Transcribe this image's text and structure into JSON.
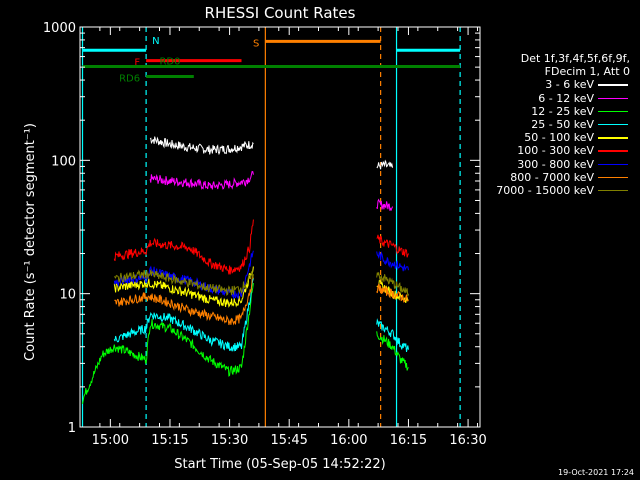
{
  "chart_data": {
    "type": "line",
    "title": "RHESSI Count Rates",
    "xlabel": "Start Time (05-Sep-05 14:52:22)",
    "ylabel": "Count Rate (s⁻¹ detector segment⁻¹)",
    "yscale": "log",
    "ylim": [
      1,
      1000
    ],
    "xlim": [
      "14:52:22",
      "16:33:00"
    ],
    "x_ticks": [
      "15:00",
      "15:15",
      "15:30",
      "15:45",
      "16:00",
      "16:15",
      "16:30"
    ],
    "y_ticks": [
      "1",
      "10",
      "100",
      "1000"
    ],
    "legend_title_lines": [
      "Det 1f,3f,4f,5f,6f,9f,",
      "FDecim 1, Att 0"
    ],
    "legend_position": "right",
    "series": [
      {
        "name": "3 - 6 keV",
        "color": "#ffffff",
        "segments": [
          {
            "x": [
              "15:10",
              "15:15",
              "15:20",
              "15:25",
              "15:30",
              "15:36"
            ],
            "y": [
              145,
              132,
              125,
              120,
              122,
              133
            ]
          },
          {
            "x": [
              "16:07",
              "16:09",
              "16:11"
            ],
            "y": [
              90,
              92,
              88
            ]
          }
        ]
      },
      {
        "name": "6 - 12 keV",
        "color": "#ff00ff",
        "segments": [
          {
            "x": [
              "15:10",
              "15:15",
              "15:20",
              "15:25",
              "15:30",
              "15:34",
              "15:36"
            ],
            "y": [
              73,
              70,
              68,
              64,
              66,
              70,
              78
            ]
          },
          {
            "x": [
              "16:07",
              "16:09",
              "16:11"
            ],
            "y": [
              47,
              46,
              45
            ]
          }
        ]
      },
      {
        "name": "12 - 25 keV",
        "color": "#00ff00",
        "segments": [
          {
            "x": [
              "14:53",
              "14:58",
              "15:01",
              "15:04",
              "15:06",
              "15:09",
              "15:10",
              "15:15",
              "15:20",
              "15:25",
              "15:30",
              "15:33",
              "15:36"
            ],
            "y": [
              1.6,
              3.5,
              4.0,
              3.7,
              3.5,
              3.2,
              6.0,
              5.5,
              4.3,
              3.2,
              2.6,
              2.8,
              12
            ]
          },
          {
            "x": [
              "16:07",
              "16:09",
              "16:11",
              "16:13",
              "16:15"
            ],
            "y": [
              5.0,
              4.5,
              4.0,
              3.2,
              2.8
            ]
          }
        ]
      },
      {
        "name": "25 - 50 keV",
        "color": "#00ffff",
        "segments": [
          {
            "x": [
              "15:01",
              "15:05",
              "15:09",
              "15:10",
              "15:15",
              "15:20",
              "15:25",
              "15:30",
              "15:33",
              "15:36"
            ],
            "y": [
              4.5,
              5.0,
              5.5,
              7.0,
              6.5,
              5.5,
              4.5,
              4.0,
              4.0,
              13
            ]
          },
          {
            "x": [
              "16:07",
              "16:09",
              "16:11",
              "16:13",
              "16:15"
            ],
            "y": [
              6.0,
              5.5,
              5.0,
              4.2,
              3.8
            ]
          }
        ]
      },
      {
        "name": "50 - 100 keV",
        "color": "#ffff00",
        "segments": [
          {
            "x": [
              "15:01",
              "15:05",
              "15:09",
              "15:10",
              "15:15",
              "15:20",
              "15:25",
              "15:30",
              "15:33",
              "15:36"
            ],
            "y": [
              11,
              11.5,
              12,
              12,
              11,
              10,
              9,
              8.5,
              9.0,
              16
            ]
          },
          {
            "x": [
              "16:07",
              "16:09",
              "16:11",
              "16:13",
              "16:15"
            ],
            "y": [
              12,
              11,
              10,
              9.5,
              9
            ]
          }
        ]
      },
      {
        "name": "100 - 300 keV",
        "color": "#ff0000",
        "segments": [
          {
            "x": [
              "15:01",
              "15:05",
              "15:09",
              "15:10",
              "15:15",
              "15:20",
              "15:25",
              "15:30",
              "15:33",
              "15:35",
              "15:36"
            ],
            "y": [
              19,
              20,
              21,
              24,
              23,
              22,
              17,
              15,
              16,
              22,
              36
            ]
          },
          {
            "x": [
              "16:07",
              "16:09",
              "16:11",
              "16:13",
              "16:15"
            ],
            "y": [
              26,
              24,
              23,
              21,
              20
            ]
          }
        ]
      },
      {
        "name": "300 - 800 keV",
        "color": "#0000ff",
        "segments": [
          {
            "x": [
              "15:01",
              "15:05",
              "15:09",
              "15:10",
              "15:15",
              "15:20",
              "15:25",
              "15:30",
              "15:33",
              "15:36"
            ],
            "y": [
              12,
              13,
              13,
              15,
              13.5,
              12.5,
              11,
              10,
              10,
              21
            ]
          },
          {
            "x": [
              "16:07",
              "16:09",
              "16:11",
              "16:13",
              "16:15"
            ],
            "y": [
              20,
              18,
              17,
              16,
              15
            ]
          }
        ]
      },
      {
        "name": "800 - 7000 keV",
        "color": "#ff8000",
        "segments": [
          {
            "x": [
              "15:01",
              "15:05",
              "15:09",
              "15:10",
              "15:15",
              "15:20",
              "15:25",
              "15:30",
              "15:33",
              "15:36"
            ],
            "y": [
              8.5,
              9,
              9.5,
              9.5,
              8.5,
              7.5,
              6.8,
              6.2,
              6.5,
              13
            ]
          },
          {
            "x": [
              "16:07",
              "16:09",
              "16:11",
              "16:13",
              "16:15"
            ],
            "y": [
              11,
              10.5,
              10,
              9.5,
              9
            ]
          }
        ]
      },
      {
        "name": "7000 - 15000 keV",
        "color": "#808000",
        "segments": [
          {
            "x": [
              "15:01",
              "15:05",
              "15:09",
              "15:10",
              "15:15",
              "15:20",
              "15:25",
              "15:30",
              "15:33",
              "15:36"
            ],
            "y": [
              13,
              13.5,
              14,
              14,
              13,
              12,
              11,
              10.5,
              11,
              14
            ]
          },
          {
            "x": [
              "16:07",
              "16:09",
              "16:11",
              "16:13",
              "16:15"
            ],
            "y": [
              14,
              13,
              12,
              11,
              10
            ]
          }
        ]
      }
    ],
    "vertical_lines": [
      {
        "x": "14:53",
        "color": "#00ffff",
        "style": "solid"
      },
      {
        "x": "15:09",
        "color": "#00ffff",
        "style": "dashed"
      },
      {
        "x": "15:39",
        "color": "#ff8000",
        "style": "solid"
      },
      {
        "x": "16:08",
        "color": "#ff8000",
        "style": "dashed"
      },
      {
        "x": "16:12",
        "color": "#00ffff",
        "style": "solid"
      },
      {
        "x": "16:28",
        "color": "#00ffff",
        "style": "dashed"
      }
    ],
    "flag_bars": [
      {
        "label": "N",
        "color": "#00ffff",
        "segments": [
          [
            "14:53",
            "15:09"
          ],
          [
            "16:12",
            "16:28"
          ]
        ],
        "y": 670,
        "label_at": "15:10",
        "label_side": "right"
      },
      {
        "label": "S",
        "color": "#ff8000",
        "segments": [
          [
            "15:39",
            "16:08"
          ]
        ],
        "y": 780,
        "label_at": "15:38",
        "label_side": "left"
      },
      {
        "label": "F",
        "color": "#ff0000",
        "segments": [
          [
            "15:09",
            "15:33"
          ]
        ],
        "y": 560,
        "label_at": "15:08",
        "label_side": "left"
      },
      {
        "label": "RD0",
        "color": "#008000",
        "segments": [
          [
            "14:53",
            "16:28"
          ]
        ],
        "y": 505,
        "label_at": "15:15",
        "label_side": "center"
      },
      {
        "label": "RD6",
        "color": "#008000",
        "segments": [
          [
            "15:09",
            "15:21"
          ]
        ],
        "y": 425,
        "label_at": "15:08",
        "label_side": "left"
      }
    ],
    "grid": false
  },
  "footer": {
    "timestamp": "19-Oct-2021 17:24"
  }
}
